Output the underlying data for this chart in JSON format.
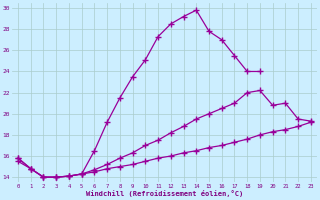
{
  "xlabel": "Windchill (Refroidissement éolien,°C)",
  "background_color": "#cceeff",
  "line_color": "#990099",
  "grid_color": "#aacccc",
  "xlim": [
    -0.5,
    23.5
  ],
  "ylim": [
    13.5,
    30.5
  ],
  "xticks": [
    0,
    1,
    2,
    3,
    4,
    5,
    6,
    7,
    8,
    9,
    10,
    11,
    12,
    13,
    14,
    15,
    16,
    17,
    18,
    19,
    20,
    21,
    22,
    23
  ],
  "yticks": [
    14,
    16,
    18,
    20,
    22,
    24,
    26,
    28,
    30
  ],
  "line1_x": [
    0,
    1,
    2,
    3,
    4,
    5,
    6,
    7,
    8,
    9,
    10,
    11,
    12,
    13,
    14,
    15,
    16,
    17,
    18,
    19
  ],
  "line1_y": [
    15.8,
    14.8,
    14.0,
    14.0,
    14.1,
    14.3,
    16.5,
    19.2,
    21.5,
    23.5,
    25.1,
    27.3,
    28.5,
    29.2,
    29.8,
    27.8,
    27.0,
    25.5,
    24.0,
    24.0
  ],
  "line2_x": [
    0,
    1,
    2,
    3,
    4,
    5,
    6,
    7,
    8,
    9,
    10,
    11,
    12,
    13,
    14,
    15,
    16,
    17,
    18,
    19,
    20,
    21,
    22,
    23
  ],
  "line2_y": [
    15.8,
    14.8,
    14.0,
    14.0,
    14.1,
    14.3,
    14.7,
    15.2,
    15.8,
    16.3,
    17.0,
    17.5,
    18.2,
    18.8,
    19.5,
    20.0,
    20.5,
    21.0,
    22.0,
    22.2,
    20.8,
    21.0,
    19.5,
    19.3
  ],
  "line3_x": [
    0,
    1,
    2,
    3,
    4,
    5,
    6,
    7,
    8,
    9,
    10,
    11,
    12,
    13,
    14,
    15,
    16,
    17,
    18,
    19,
    20,
    21,
    22,
    23
  ],
  "line3_y": [
    15.5,
    14.8,
    14.0,
    14.0,
    14.1,
    14.3,
    14.5,
    14.8,
    15.0,
    15.2,
    15.5,
    15.8,
    16.0,
    16.3,
    16.5,
    16.8,
    17.0,
    17.3,
    17.6,
    18.0,
    18.3,
    18.5,
    18.8,
    19.2
  ]
}
